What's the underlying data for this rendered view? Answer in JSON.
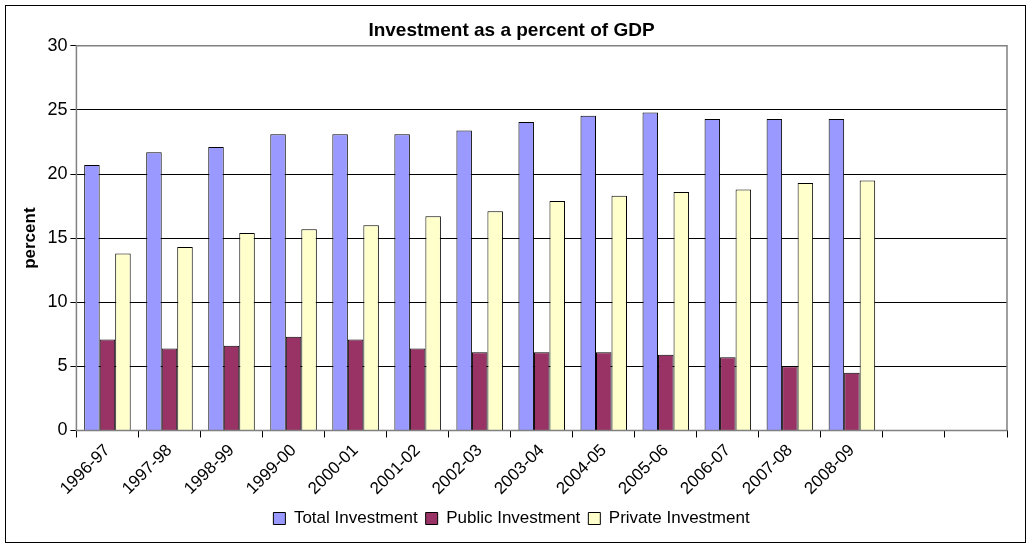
{
  "chart_data": {
    "type": "bar",
    "title": "Investment as a percent of GDP",
    "ylabel": "percent",
    "categories": [
      "1996-97",
      "1997-98",
      "1998-99",
      "1999-00",
      "2000-01",
      "2001-02",
      "2002-03",
      "2003-04",
      "2004-05",
      "2005-06",
      "2006-07",
      "2007-08",
      "2008-09",
      null,
      null
    ],
    "series": [
      {
        "name": "Total Investment",
        "color": "#9999ff",
        "values": [
          20.7,
          21.7,
          22.1,
          23.1,
          23.1,
          23.1,
          23.4,
          24.05,
          24.55,
          24.8,
          24.3,
          24.3,
          24.3,
          null,
          null
        ]
      },
      {
        "name": "Public Investment",
        "color": "#993366",
        "values": [
          7.1,
          6.4,
          6.6,
          7.3,
          7.1,
          6.4,
          6.1,
          6.1,
          6.1,
          5.9,
          5.7,
          5.0,
          4.5,
          null,
          null
        ]
      },
      {
        "name": "Private Investment",
        "color": "#ffffcc",
        "values": [
          13.8,
          14.3,
          15.4,
          15.7,
          16.0,
          16.7,
          17.1,
          17.9,
          18.3,
          18.6,
          18.8,
          19.3,
          19.5,
          null,
          null
        ]
      }
    ],
    "ylim": [
      0,
      30
    ],
    "yticks": [
      0,
      5,
      10,
      15,
      20,
      25,
      30
    ],
    "grid": "y",
    "legend": "bottom"
  }
}
